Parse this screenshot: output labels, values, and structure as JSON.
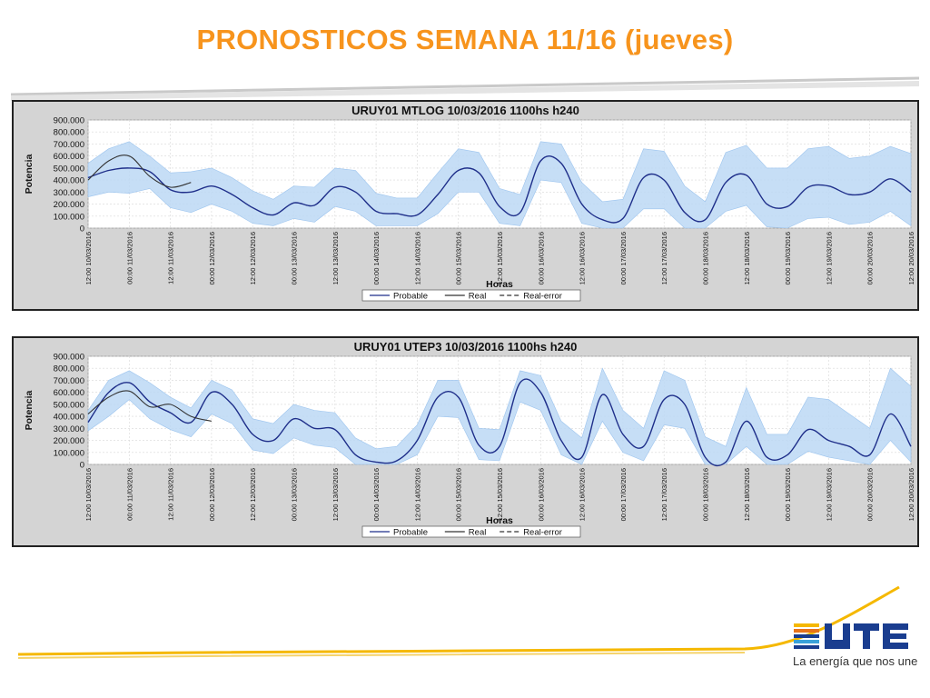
{
  "slide": {
    "title": "PRONOSTICOS SEMANA 11/16 (jueves)",
    "brand": "UTE",
    "slogan": "La energía que nos une",
    "colors": {
      "title": "#f7941d",
      "accent_line": "#f5b800",
      "brand_blue": "#1a3d8f"
    }
  },
  "chart_data": [
    {
      "type": "line",
      "title": "URUY01  MTLOG  10/03/2016  1100hs   h240",
      "xlabel": "Horas",
      "ylabel": "Potencia",
      "ylim": [
        0,
        900000
      ],
      "yticks": [
        "0",
        "100.000",
        "200.000",
        "300.000",
        "400.000",
        "500.000",
        "600.000",
        "700.000",
        "800.000",
        "900.000"
      ],
      "xticks": [
        "12:00 10/03/2016",
        "00:00 11/03/2016",
        "12:00 11/03/2016",
        "00:00 12/03/2016",
        "12:00 12/03/2016",
        "00:00 13/03/2016",
        "12:00 13/03/2016",
        "00:00 14/03/2016",
        "12:00 14/03/2016",
        "00:00 15/03/2016",
        "12:00 15/03/2016",
        "00:00 16/03/2016",
        "12:00 16/03/2016",
        "00:00 17/03/2016",
        "12:00 17/03/2016",
        "00:00 18/03/2016",
        "12:00 18/03/2016",
        "00:00 19/03/2016",
        "12:00 19/03/2016",
        "00:00 20/03/2016",
        "12:00 20/03/2016"
      ],
      "grid": true,
      "legend": {
        "position": "bottom",
        "items": [
          "Probable",
          "Real",
          "Real-error"
        ]
      },
      "colors": {
        "probable": "#1f2f8a",
        "band": "#bcd8f5",
        "real": "#333333",
        "plot_bg": "#ffffff",
        "frame_bg": "#d4d4d4"
      },
      "x_hours": [
        0,
        6,
        12,
        18,
        24,
        30,
        36,
        42,
        48,
        54,
        60,
        66,
        72,
        78,
        84,
        90,
        96,
        102,
        108,
        114,
        120,
        126,
        132,
        138,
        144,
        150,
        156,
        162,
        168,
        174,
        180,
        186,
        192,
        198,
        204,
        210,
        216,
        222,
        228,
        234,
        240
      ],
      "series": [
        {
          "name": "Probable",
          "values": [
            420000,
            480000,
            500000,
            470000,
            320000,
            300000,
            350000,
            280000,
            170000,
            110000,
            210000,
            190000,
            340000,
            300000,
            140000,
            120000,
            110000,
            280000,
            480000,
            460000,
            180000,
            130000,
            560000,
            540000,
            200000,
            70000,
            80000,
            420000,
            400000,
            130000,
            70000,
            380000,
            440000,
            200000,
            180000,
            340000,
            350000,
            280000,
            300000,
            410000,
            300000
          ]
        },
        {
          "name": "Band upper",
          "values": [
            540000,
            660000,
            720000,
            600000,
            460000,
            470000,
            500000,
            420000,
            310000,
            240000,
            350000,
            340000,
            500000,
            480000,
            290000,
            250000,
            250000,
            460000,
            660000,
            630000,
            330000,
            280000,
            720000,
            700000,
            380000,
            220000,
            240000,
            660000,
            640000,
            350000,
            220000,
            630000,
            690000,
            500000,
            500000,
            660000,
            680000,
            580000,
            600000,
            680000,
            620000
          ]
        },
        {
          "name": "Band lower",
          "values": [
            260000,
            300000,
            290000,
            330000,
            170000,
            130000,
            200000,
            140000,
            40000,
            20000,
            80000,
            50000,
            180000,
            140000,
            20000,
            20000,
            20000,
            120000,
            300000,
            300000,
            40000,
            20000,
            400000,
            380000,
            40000,
            0,
            0,
            160000,
            160000,
            0,
            0,
            140000,
            190000,
            10000,
            0,
            80000,
            90000,
            30000,
            50000,
            140000,
            20000
          ]
        },
        {
          "name": "Real",
          "values": [
            400000,
            560000,
            600000,
            430000,
            340000,
            380000
          ]
        }
      ]
    },
    {
      "type": "line",
      "title": "URUY01  UTEP3  10/03/2016  1100hs   h240",
      "xlabel": "Horas",
      "ylabel": "Potencia",
      "ylim": [
        0,
        900000
      ],
      "yticks": [
        "0",
        "100.000",
        "200.000",
        "300.000",
        "400.000",
        "500.000",
        "600.000",
        "700.000",
        "800.000",
        "900.000"
      ],
      "xticks": [
        "12:00 10/03/2016",
        "00:00 11/03/2016",
        "12:00 11/03/2016",
        "00:00 12/03/2016",
        "12:00 12/03/2016",
        "00:00 13/03/2016",
        "12:00 13/03/2016",
        "00:00 14/03/2016",
        "12:00 14/03/2016",
        "00:00 15/03/2016",
        "12:00 15/03/2016",
        "00:00 16/03/2016",
        "12:00 16/03/2016",
        "00:00 17/03/2016",
        "12:00 17/03/2016",
        "00:00 18/03/2016",
        "12:00 18/03/2016",
        "00:00 19/03/2016",
        "12:00 19/03/2016",
        "00:00 20/03/2016",
        "12:00 20/03/2016"
      ],
      "grid": true,
      "legend": {
        "position": "bottom",
        "items": [
          "Probable",
          "Real",
          "Real-error"
        ]
      },
      "colors": {
        "probable": "#1f2f8a",
        "band": "#bcd8f5",
        "real": "#333333",
        "plot_bg": "#ffffff",
        "frame_bg": "#d4d4d4"
      },
      "x_hours": [
        0,
        6,
        12,
        18,
        24,
        30,
        36,
        42,
        48,
        54,
        60,
        66,
        72,
        78,
        84,
        90,
        96,
        102,
        108,
        114,
        120,
        126,
        132,
        138,
        144,
        150,
        156,
        162,
        168,
        174,
        180,
        186,
        192,
        198,
        204,
        210,
        216,
        222,
        228,
        234,
        240
      ],
      "series": [
        {
          "name": "Probable",
          "values": [
            350000,
            600000,
            680000,
            520000,
            430000,
            350000,
            600000,
            500000,
            250000,
            200000,
            380000,
            300000,
            290000,
            80000,
            20000,
            30000,
            200000,
            560000,
            560000,
            160000,
            150000,
            680000,
            600000,
            200000,
            60000,
            580000,
            250000,
            150000,
            540000,
            500000,
            60000,
            20000,
            360000,
            60000,
            80000,
            290000,
            200000,
            150000,
            80000,
            420000,
            150000
          ]
        },
        {
          "name": "Band upper",
          "values": [
            450000,
            700000,
            780000,
            680000,
            560000,
            470000,
            700000,
            620000,
            380000,
            340000,
            500000,
            450000,
            430000,
            220000,
            130000,
            150000,
            330000,
            700000,
            700000,
            300000,
            290000,
            780000,
            740000,
            360000,
            220000,
            800000,
            450000,
            300000,
            780000,
            700000,
            230000,
            150000,
            640000,
            250000,
            250000,
            560000,
            540000,
            420000,
            300000,
            800000,
            650000
          ]
        },
        {
          "name": "Band lower",
          "values": [
            280000,
            400000,
            540000,
            380000,
            290000,
            230000,
            420000,
            340000,
            120000,
            90000,
            220000,
            160000,
            140000,
            0,
            0,
            0,
            80000,
            400000,
            390000,
            40000,
            30000,
            520000,
            450000,
            80000,
            0,
            360000,
            100000,
            30000,
            330000,
            300000,
            0,
            0,
            150000,
            0,
            0,
            110000,
            60000,
            30000,
            0,
            200000,
            20000
          ]
        },
        {
          "name": "Real",
          "values": [
            420000,
            560000,
            610000,
            480000,
            500000,
            400000,
            360000
          ]
        }
      ]
    }
  ]
}
